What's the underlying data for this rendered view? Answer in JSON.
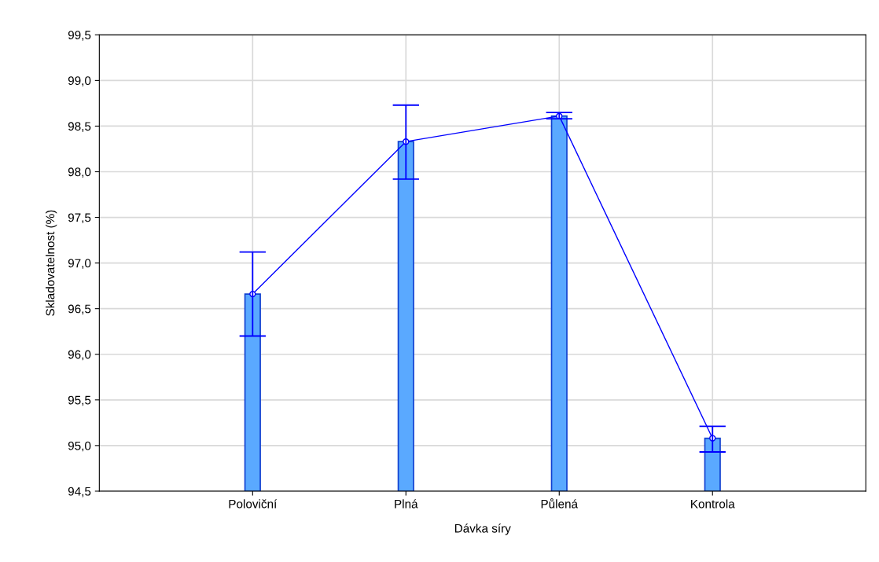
{
  "chart_data": {
    "type": "bar",
    "xlabel": "Dávka síry",
    "ylabel": "Skladovatelnost (%)",
    "categories": [
      "Poloviční",
      "Plná",
      "Půlená",
      "Kontrola"
    ],
    "series": [
      {
        "color": "#5aa9ff",
        "values": [
          96.66,
          98.33,
          98.61,
          95.08
        ]
      },
      {
        "type": "line",
        "color": "#0000ff",
        "values": [
          96.66,
          98.33,
          98.61,
          95.08
        ],
        "errors": [
          [
            96.2,
            97.12
          ],
          [
            97.92,
            98.73
          ],
          [
            98.58,
            98.65
          ],
          [
            94.93,
            95.21
          ]
        ]
      }
    ],
    "marker": "circle",
    "line_style": "solid",
    "grid": true,
    "ylim": [
      94.5,
      99.5
    ],
    "yticks": [
      {
        "value": 94.5,
        "label": "94,5"
      },
      {
        "value": 95,
        "label": "95,0"
      },
      {
        "value": 95.5,
        "label": "95,5"
      },
      {
        "value": 96,
        "label": "96,0"
      },
      {
        "value": 96.5,
        "label": "96,5"
      },
      {
        "value": 97,
        "label": "97,0"
      },
      {
        "value": 97.5,
        "label": "97,5"
      },
      {
        "value": 98,
        "label": "98,0"
      },
      {
        "value": 98.5,
        "label": "98,5"
      },
      {
        "value": 99,
        "label": "99,0"
      },
      {
        "value": 99.5,
        "label": "99,5"
      }
    ]
  }
}
